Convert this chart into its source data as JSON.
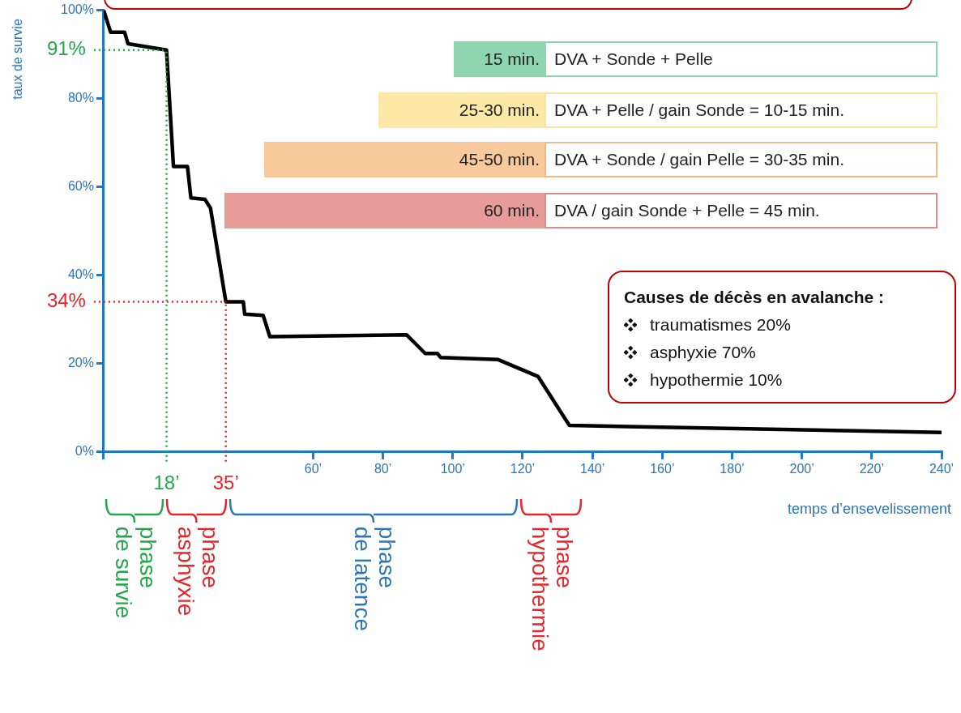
{
  "chart_data": {
    "type": "line",
    "xlabel": "temps d’ensevelissement",
    "ylabel": "taux de survie",
    "x": [
      0,
      2,
      6,
      7,
      18,
      20,
      24,
      25,
      29,
      30.6,
      35,
      40,
      40.4,
      45.7,
      47.6,
      86.8,
      92.1,
      95.6,
      96.5,
      113,
      124.4,
      133.4,
      240
    ],
    "series": [
      {
        "color": "#000000",
        "values": [
          100,
          95,
          95,
          92.4,
          91,
          64.6,
          64.6,
          57.5,
          57.2,
          55.2,
          34,
          34,
          31.2,
          30.9,
          26.1,
          26.5,
          22.3,
          22.3,
          21.4,
          20.9,
          17.1,
          6,
          4.4
        ]
      }
    ],
    "xlim": [
      0,
      240
    ],
    "ylim": [
      0,
      100
    ],
    "xticks": [
      {
        "value": 0,
        "label": null
      },
      {
        "value": 60,
        "label": "60’"
      },
      {
        "value": 80,
        "label": "80’"
      },
      {
        "value": 100,
        "label": "100’"
      },
      {
        "value": 120,
        "label": "120’"
      },
      {
        "value": 140,
        "label": "140’"
      },
      {
        "value": 160,
        "label": "160’"
      },
      {
        "value": 180,
        "label": "180’"
      },
      {
        "value": 200,
        "label": "200’"
      },
      {
        "value": 220,
        "label": "220’"
      },
      {
        "value": 240,
        "label": "240’"
      }
    ],
    "yticks": [
      {
        "value": 0,
        "label": "0%"
      },
      {
        "value": 20,
        "label": "20%"
      },
      {
        "value": 40,
        "label": "40%"
      },
      {
        "value": 60,
        "label": "60%"
      },
      {
        "value": 80,
        "label": "80%"
      },
      {
        "value": 100,
        "label": "100%"
      }
    ],
    "ref_lines": [
      {
        "axis": "x",
        "value": 18,
        "label": "18’",
        "color": "#22a84a",
        "line_style": "dotted"
      },
      {
        "axis": "y",
        "value": 91,
        "label": "91%",
        "color": "#22a84a",
        "line_style": "dotted"
      },
      {
        "axis": "x",
        "value": 35,
        "label": "35’",
        "color": "#e8252a",
        "line_style": "dotted"
      },
      {
        "axis": "y",
        "value": 34,
        "label": "34%",
        "color": "#e8252a",
        "line_style": "dotted"
      }
    ],
    "annotations": [
      "15 min.",
      "DVA + Sonde + Pelle",
      "25-30 min.",
      "DVA + Pelle / gain Sonde = 10-15 min.",
      "45-50 min.",
      "DVA + Sonde / gain Pelle = 30-35 min.",
      "60 min.",
      "DVA / gain Sonde + Pelle = 45 min.",
      "Causes de décès en avalanche :",
      "traumatismes 20%",
      "asphyxie 70%",
      "hypothermie 10%",
      "phase de survie",
      "phase asphyxie",
      "phase de latence",
      "phase hypothermie"
    ],
    "marker": "none",
    "line_style": "solid",
    "grid": false,
    "legend": false
  }
}
